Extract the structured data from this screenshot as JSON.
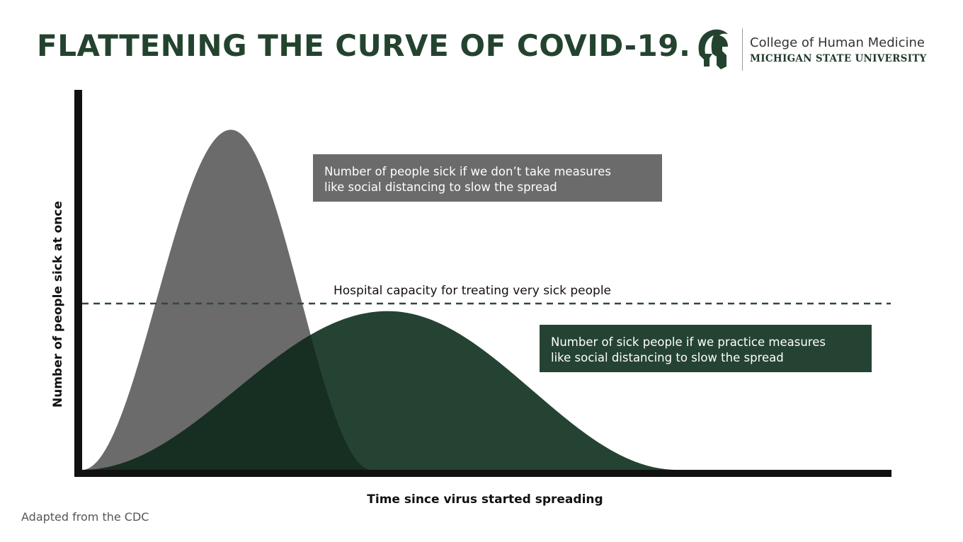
{
  "header": {
    "title": "FLATTENING THE CURVE OF COVID-19.",
    "brand_line1": "College of Human Medicine",
    "brand_line2": "MICHIGAN STATE UNIVERSITY"
  },
  "footnote": "Adapted from the CDC",
  "colors": {
    "title": "#23432f",
    "no_measures": "#6b6b6b",
    "with_measures": "#254333",
    "overlap": "#172e22",
    "axis": "#111111",
    "capacity_line": "#2f4a3a"
  },
  "chart_data": {
    "type": "area",
    "xlabel": "Time since virus started spreading",
    "ylabel": "Number of people sick at once",
    "series": [
      {
        "label": "Number of people sick if we don’t take measures like social distancing to slow the spread",
        "label_lines": [
          "Number of people sick if we don’t take measures",
          "like social distancing to slow the spread"
        ],
        "peak_x": 0.185,
        "peak_y": 0.9,
        "end_x": 0.36,
        "color": "#6b6b6b"
      },
      {
        "label": "Number of sick people if we practice measures like social distancing to slow the spread",
        "label_lines": [
          "Number of sick people if we practice measures",
          "like social distancing to slow the spread"
        ],
        "peak_x": 0.38,
        "peak_y": 0.42,
        "end_x": 0.74,
        "color": "#254333"
      }
    ],
    "reference_line": {
      "label": "Hospital capacity for treating very sick people",
      "y": 0.44,
      "style": "dashed"
    },
    "xlim": [
      0,
      1
    ],
    "ylim": [
      0,
      1
    ],
    "grid": false,
    "legend": "none"
  }
}
